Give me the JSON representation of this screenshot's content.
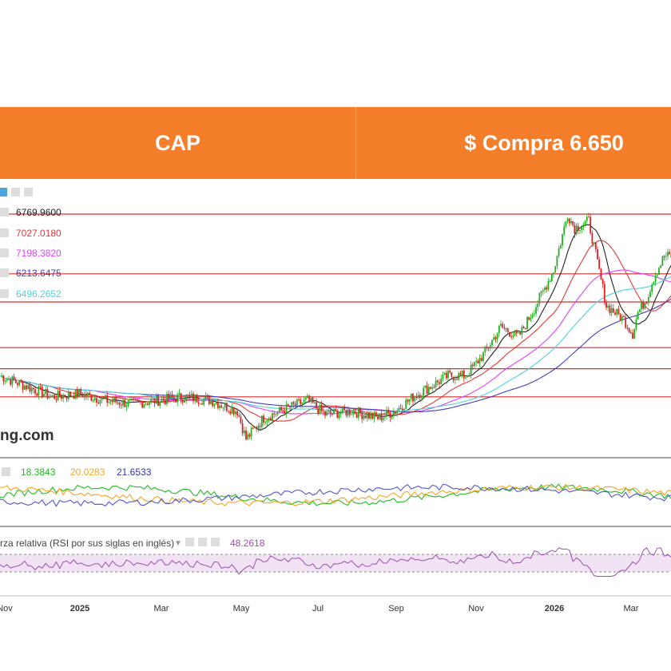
{
  "banner": {
    "ticker": "CAP",
    "price_label": "$ Compra 6.650"
  },
  "colors": {
    "banner": "#f47e2a",
    "candle_up": "#22b022",
    "candle_down": "#dd1f1f",
    "level_line": "#d32f2f",
    "rsi_band": "#f1e3f4",
    "rsi_line": "#9c4fb0"
  },
  "chart_data": [
    {
      "type": "candlestick",
      "panel": "price",
      "x_ticks": [
        "Nov",
        "2025",
        "Mar",
        "May",
        "Jul",
        "Sep",
        "Nov",
        "2026",
        "Mar"
      ],
      "ylim": [
        5250,
        9000
      ],
      "close_anchors": [
        [
          0,
          6200
        ],
        [
          15,
          6050
        ],
        [
          30,
          5900
        ],
        [
          45,
          5950
        ],
        [
          60,
          5850
        ],
        [
          75,
          5800
        ],
        [
          90,
          5850
        ],
        [
          105,
          5900
        ],
        [
          120,
          5850
        ],
        [
          135,
          5700
        ],
        [
          140,
          5300
        ],
        [
          150,
          5600
        ],
        [
          165,
          5750
        ],
        [
          175,
          5850
        ],
        [
          185,
          5650
        ],
        [
          200,
          5700
        ],
        [
          215,
          5600
        ],
        [
          225,
          5700
        ],
        [
          235,
          5900
        ],
        [
          245,
          6050
        ],
        [
          255,
          6200
        ],
        [
          265,
          6200
        ],
        [
          275,
          6500
        ],
        [
          285,
          6900
        ],
        [
          295,
          6750
        ],
        [
          305,
          7200
        ],
        [
          315,
          7700
        ],
        [
          323,
          8500
        ],
        [
          327,
          8300
        ],
        [
          335,
          8400
        ],
        [
          340,
          7800
        ],
        [
          345,
          7200
        ],
        [
          355,
          7000
        ],
        [
          360,
          6800
        ],
        [
          363,
          7100
        ],
        [
          368,
          7300
        ],
        [
          372,
          7600
        ],
        [
          378,
          7900
        ]
      ],
      "moving_averages": [
        {
          "value": "6769.9600",
          "color": "#222222"
        },
        {
          "value": "7027.0180",
          "color": "#e53935"
        },
        {
          "value": "7198.3820",
          "color": "#e040fb"
        },
        {
          "value": "6213.6475",
          "color": "#3f3fbf"
        },
        {
          "value": "6496.2652",
          "color": "#4dd0e1"
        }
      ],
      "horizontal_levels": [
        8500,
        7650,
        7250,
        6600,
        6300,
        5900
      ]
    },
    {
      "type": "line",
      "panel": "dmi",
      "values_label": [
        "18.3843",
        "20.0283",
        "21.6533"
      ],
      "series_colors": [
        "#22bb22",
        "#f5a623",
        "#5555cc"
      ]
    },
    {
      "type": "line",
      "panel": "rsi",
      "title": "rza relativa (RSI por sus siglas en inglés)",
      "value": "48.2618",
      "band": [
        30,
        70
      ]
    }
  ],
  "watermark": "ng.com"
}
